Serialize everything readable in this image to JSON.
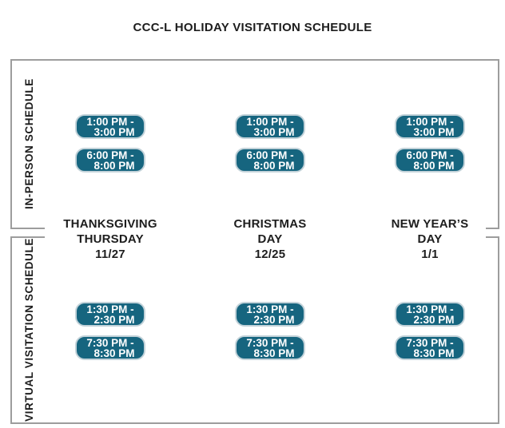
{
  "title": "CCC-L HOLIDAY VISITATION SCHEDULE",
  "sections": {
    "in_person": {
      "label": "IN-PERSON SCHEDULE"
    },
    "virtual": {
      "label": "VIRTUAL VISITATION SCHEDULE"
    }
  },
  "columns": [
    {
      "holiday": [
        "THANKSGIVING",
        "THURSDAY",
        "11/27"
      ],
      "in_person": [
        [
          "1:00 PM -",
          "3:00 PM"
        ],
        [
          "6:00 PM -",
          "8:00 PM"
        ]
      ],
      "virtual": [
        [
          "1:30 PM -",
          "2:30 PM"
        ],
        [
          "7:30 PM -",
          "8:30 PM"
        ]
      ]
    },
    {
      "holiday": [
        "CHRISTMAS",
        "DAY",
        "12/25"
      ],
      "in_person": [
        [
          "1:00 PM -",
          "3:00 PM"
        ],
        [
          "6:00 PM -",
          "8:00 PM"
        ]
      ],
      "virtual": [
        [
          "1:30 PM -",
          "2:30 PM"
        ],
        [
          "7:30 PM -",
          "8:30 PM"
        ]
      ]
    },
    {
      "holiday": [
        "NEW YEAR’S",
        "DAY",
        "1/1"
      ],
      "in_person": [
        [
          "1:00 PM -",
          "3:00 PM"
        ],
        [
          "6:00 PM -",
          "8:00 PM"
        ]
      ],
      "virtual": [
        [
          "1:30 PM -",
          "2:30 PM"
        ],
        [
          "7:30 PM -",
          "8:30 PM"
        ]
      ]
    }
  ],
  "colors": {
    "pill_background": "#16657F",
    "pill_border": "#C2D2D9",
    "box_border": "#9D9D9D",
    "text": "#1D1D1D",
    "pill_text": "#FFFFFF"
  }
}
